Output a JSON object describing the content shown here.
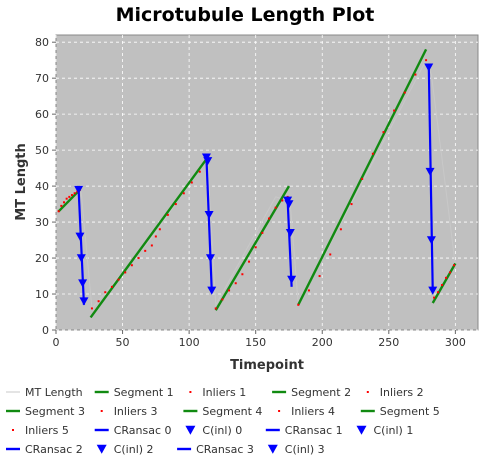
{
  "chart_data": {
    "type": "line",
    "title": "Microtubule Length Plot",
    "xlabel": "Timepoint",
    "ylabel": "MT Length",
    "xlim": [
      0,
      317
    ],
    "ylim": [
      0,
      82
    ],
    "x_ticks": [
      0,
      50,
      100,
      150,
      200,
      250,
      300
    ],
    "y_ticks": [
      0,
      10,
      20,
      30,
      40,
      50,
      60,
      70,
      80
    ],
    "grid": true,
    "legend_position": "bottom",
    "colors": {
      "plot_bg": "#c0c0c0",
      "grid": "#ffffff",
      "mt_length": "#c8c8c8",
      "segment": "#118a11",
      "inliers": "#ff0000",
      "cransac": "#0000ff",
      "cinl": "#0000ff"
    },
    "series": [
      {
        "name": "MT Length",
        "style": "line",
        "color": "mt_length",
        "x": [
          2,
          18,
          19,
          27,
          75,
          113,
          114,
          120,
          165,
          175,
          176,
          182,
          278,
          281,
          282,
          300
        ],
        "y": [
          33,
          39,
          38,
          6,
          27,
          48,
          46,
          7,
          37,
          36,
          35,
          7,
          75,
          72,
          71,
          18
        ]
      },
      {
        "name": "Segment 1",
        "style": "line",
        "color": "segment",
        "x": [
          2,
          18
        ],
        "y": [
          33,
          39
        ]
      },
      {
        "name": "Inliers 1",
        "style": "points",
        "color": "inliers",
        "x": [
          2,
          4,
          6,
          8,
          10,
          12,
          14,
          16,
          18
        ],
        "y": [
          33,
          34.5,
          35.5,
          36.5,
          37,
          37.5,
          38,
          38.5,
          39
        ]
      },
      {
        "name": "Segment 2",
        "style": "line",
        "color": "segment",
        "x": [
          26,
          114
        ],
        "y": [
          3.5,
          48
        ]
      },
      {
        "name": "Inliers 2",
        "style": "points",
        "color": "inliers",
        "x": [
          27,
          32,
          37,
          42,
          47,
          52,
          57,
          62,
          67,
          72,
          75,
          78,
          84,
          90,
          96,
          102,
          108,
          113
        ],
        "y": [
          6,
          8,
          10.5,
          12,
          14,
          16,
          18,
          20,
          22,
          23.5,
          26,
          28,
          32,
          35,
          38,
          41,
          44,
          47.5
        ]
      },
      {
        "name": "Segment 3",
        "style": "line",
        "color": "segment",
        "x": [
          120,
          175
        ],
        "y": [
          5.5,
          40
        ]
      },
      {
        "name": "Inliers 3",
        "style": "points",
        "color": "inliers",
        "x": [
          120,
          125,
          130,
          135,
          140,
          145,
          150,
          155,
          160,
          165,
          170,
          174
        ],
        "y": [
          6,
          8.5,
          11,
          13,
          15.5,
          19,
          23,
          27,
          31,
          34,
          36,
          37
        ]
      },
      {
        "name": "Segment 4",
        "style": "line",
        "color": "segment",
        "x": [
          182,
          278
        ],
        "y": [
          7,
          78
        ]
      },
      {
        "name": "Inliers 4",
        "style": "points",
        "color": "inliers",
        "x": [
          182,
          190,
          198,
          206,
          214,
          222,
          230,
          238,
          246,
          254,
          262,
          270,
          278
        ],
        "y": [
          7,
          11,
          15,
          21,
          28,
          35,
          42,
          49,
          55,
          61,
          66,
          71,
          75
        ]
      },
      {
        "name": "Segment 5",
        "style": "line",
        "color": "segment",
        "x": [
          283,
          300
        ],
        "y": [
          7.5,
          18.5
        ]
      },
      {
        "name": "Inliers 5",
        "style": "points",
        "color": "inliers",
        "x": [
          284,
          287,
          290,
          293,
          296,
          299
        ],
        "y": [
          9,
          10.5,
          12.5,
          14.5,
          16,
          18
        ]
      },
      {
        "name": "CRansac 0",
        "style": "line",
        "color": "cransac",
        "x": [
          17,
          21
        ],
        "y": [
          39,
          7
        ]
      },
      {
        "name": "C(inl) 0",
        "style": "triangles",
        "color": "cinl",
        "x": [
          17,
          18,
          19,
          20,
          21
        ],
        "y": [
          39,
          26,
          20,
          13,
          8
        ]
      },
      {
        "name": "CRansac 1",
        "style": "line",
        "color": "cransac",
        "x": [
          113,
          117
        ],
        "y": [
          48,
          11
        ]
      },
      {
        "name": "C(inl) 1",
        "style": "triangles",
        "color": "cinl",
        "x": [
          113,
          114,
          115,
          116,
          117
        ],
        "y": [
          48,
          47,
          32,
          20,
          11
        ]
      },
      {
        "name": "CRansac 2",
        "style": "line",
        "color": "cransac",
        "x": [
          174,
          177
        ],
        "y": [
          36,
          12
        ]
      },
      {
        "name": "C(inl) 2",
        "style": "triangles",
        "color": "cinl",
        "x": [
          174,
          175,
          176,
          177
        ],
        "y": [
          36,
          35,
          27,
          14
        ]
      },
      {
        "name": "CRansac 3",
        "style": "line",
        "color": "cransac",
        "x": [
          280,
          283
        ],
        "y": [
          74,
          11
        ]
      },
      {
        "name": "C(inl) 3",
        "style": "triangles",
        "color": "cinl",
        "x": [
          280,
          281,
          282,
          283
        ],
        "y": [
          73,
          44,
          25,
          11
        ]
      }
    ],
    "legend_entries": [
      "MT Length",
      "Segment 1",
      "Inliers 1",
      "Segment 2",
      "Inliers 2",
      "Segment 3",
      "Inliers 3",
      "Segment 4",
      "Inliers 4",
      "Segment 5",
      "Inliers 5",
      "CRansac 0",
      "C(inl) 0",
      "CRansac 1",
      "C(inl) 1",
      "CRansac 2",
      "C(inl) 2",
      "CRansac 3",
      "C(inl) 3"
    ]
  }
}
